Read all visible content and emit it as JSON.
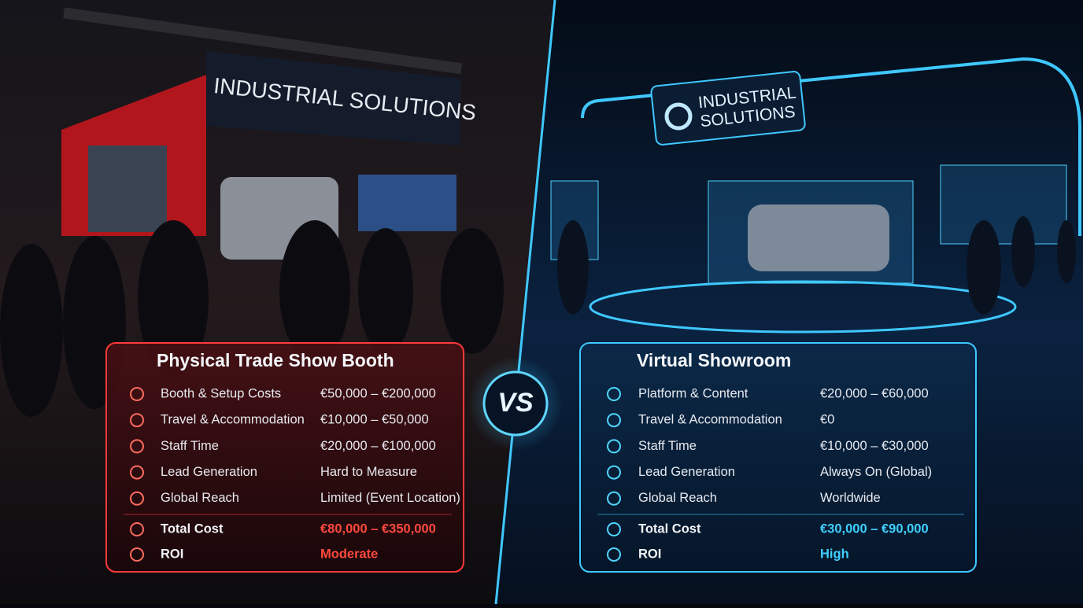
{
  "left_scene": {
    "sign": "INDUSTRIAL SOLUTIONS"
  },
  "right_scene": {
    "sign_line1": "INDUSTRIAL",
    "sign_line2": "SOLUTIONS"
  },
  "vs": "VS",
  "panels": [
    {
      "title": "Physical Trade Show Booth",
      "rows": [
        {
          "label": "Booth & Setup Costs",
          "value": "€50,000 – €200,000"
        },
        {
          "label": "Travel & Accommodation",
          "value": "€10,000 – €50,000"
        },
        {
          "label": "Staff Time",
          "value": "€20,000 – €100,000"
        },
        {
          "label": "Lead Generation",
          "value": "Hard to Measure"
        },
        {
          "label": "Global Reach",
          "value": "Limited (Event Location)"
        }
      ],
      "total": {
        "label": "Total Cost",
        "value": "€80,000 – €350,000"
      },
      "roi": {
        "label": "ROI",
        "value": "Moderate"
      }
    },
    {
      "title": "Virtual Showroom",
      "rows": [
        {
          "label": "Platform & Content",
          "value": "€20,000 – €60,000"
        },
        {
          "label": "Travel & Accommodation",
          "value": "€0"
        },
        {
          "label": "Staff Time",
          "value": "€10,000 – €30,000"
        },
        {
          "label": "Lead Generation",
          "value": "Always On (Global)"
        },
        {
          "label": "Global Reach",
          "value": "Worldwide"
        }
      ],
      "total": {
        "label": "Total Cost",
        "value": "€30,000 – €90,000"
      },
      "roi": {
        "label": "ROI",
        "value": "High"
      }
    }
  ]
}
